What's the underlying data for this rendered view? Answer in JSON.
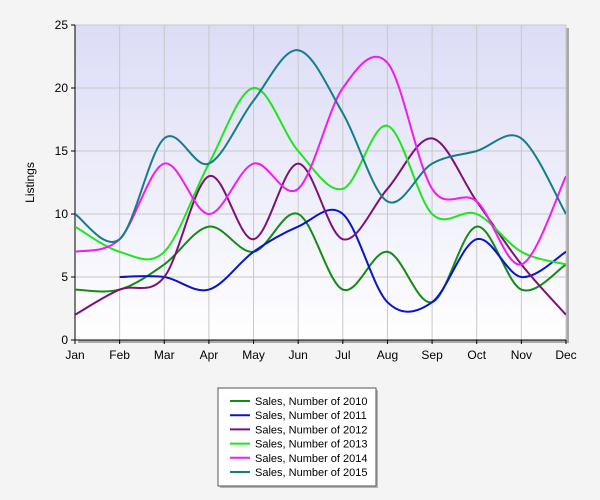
{
  "chart_data": {
    "type": "line",
    "title": "",
    "xlabel": "",
    "ylabel": "Listings",
    "ylim": [
      0,
      25
    ],
    "yticks": [
      0,
      5,
      10,
      15,
      20,
      25
    ],
    "categories": [
      "Jan",
      "Feb",
      "Mar",
      "Apr",
      "May",
      "Jun",
      "Jul",
      "Aug",
      "Sep",
      "Oct",
      "Nov",
      "Dec"
    ],
    "grid": true,
    "legend_position": "bottom",
    "smooth": true,
    "series": [
      {
        "name": "Sales, Number of 2010",
        "color": "#158a15",
        "values": [
          4,
          4,
          6,
          9,
          7,
          10,
          4,
          7,
          3,
          9,
          4,
          6
        ]
      },
      {
        "name": "Sales, Number of 2011",
        "color": "#0a14c8",
        "values": [
          null,
          5,
          5,
          4,
          7,
          9,
          10,
          3,
          3,
          8,
          5,
          7
        ]
      },
      {
        "name": "Sales, Number of 2012",
        "color": "#7a1278",
        "values": [
          2,
          4,
          5,
          13,
          8,
          14,
          8,
          12,
          16,
          11,
          6,
          2
        ]
      },
      {
        "name": "Sales, Number of 2013",
        "color": "#1ee61e",
        "values": [
          9,
          7,
          7,
          14,
          20,
          15,
          12,
          17,
          10,
          10,
          7,
          6
        ]
      },
      {
        "name": "Sales, Number of 2014",
        "color": "#f01cf0",
        "values": [
          7,
          8,
          14,
          10,
          14,
          12,
          20,
          22,
          12,
          11,
          6,
          13
        ]
      },
      {
        "name": "Sales, Number of 2015",
        "color": "#157d87",
        "values": [
          10,
          8,
          16,
          14,
          19,
          23,
          18,
          11,
          14,
          15,
          16,
          10
        ]
      }
    ]
  }
}
